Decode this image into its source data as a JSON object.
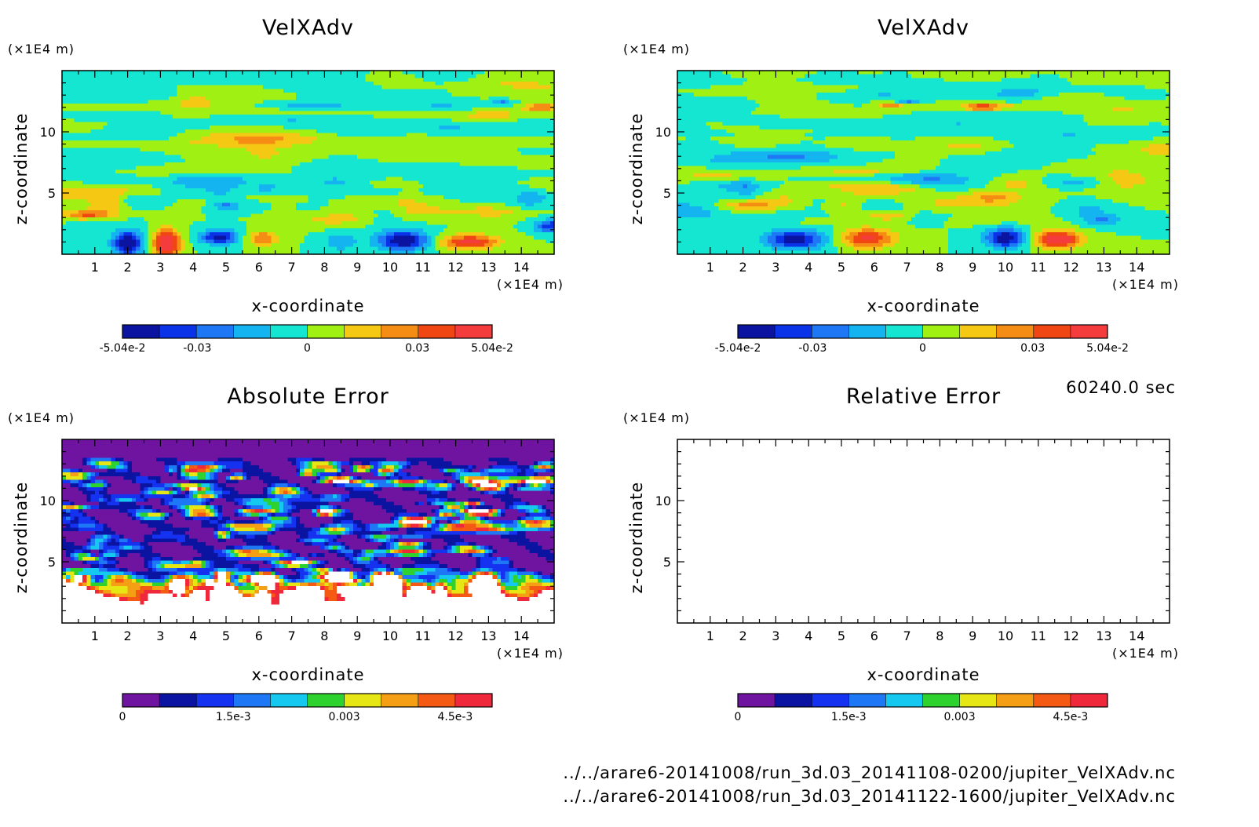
{
  "timestamp": "60240.0 sec",
  "files": [
    "../../arare6-20141008/run_3d.03_20141108-0200/jupiter_VelXAdv.nc",
    "../../arare6-20141008/run_3d.03_20141122-1600/jupiter_VelXAdv.nc"
  ],
  "colors": {
    "field": [
      "#0a14a0",
      "#0a32e6",
      "#1e78f5",
      "#14b4f0",
      "#14e6d2",
      "#a0f014",
      "#f5c814",
      "#f58c14",
      "#f04614",
      "#f53c3c"
    ],
    "error": [
      "#6e14a0",
      "#0a14a0",
      "#1432f0",
      "#1e78f5",
      "#14c8f0",
      "#2ed22e",
      "#e6e614",
      "#f5a014",
      "#f55a14",
      "#f0283c"
    ]
  },
  "chart_data": [
    {
      "type": "heatmap",
      "title": "VelXAdv",
      "xlabel": "x-coordinate",
      "ylabel": "z-coordinate",
      "x_unit": "(×1E4 m)",
      "y_unit": "(×1E4 m)",
      "xlim": [
        0,
        15
      ],
      "ylim": [
        0,
        15
      ],
      "xticks": [
        "1",
        "2",
        "3",
        "4",
        "5",
        "6",
        "7",
        "8",
        "9",
        "10",
        "11",
        "12",
        "13",
        "14"
      ],
      "yticks": [
        "5",
        "10"
      ],
      "colorbar": {
        "labels": [
          "-5.04e-2",
          "-0.03",
          "0",
          "0.03",
          "5.04e-2"
        ],
        "values": [
          -0.0504,
          -0.03,
          0,
          0.03,
          0.0504
        ],
        "range": [
          -0.0504,
          0.0504
        ]
      }
    },
    {
      "type": "heatmap",
      "title": "VelXAdv",
      "xlabel": "x-coordinate",
      "ylabel": "z-coordinate",
      "x_unit": "(×1E4 m)",
      "y_unit": "(×1E4 m)",
      "xlim": [
        0,
        15
      ],
      "ylim": [
        0,
        15
      ],
      "xticks": [
        "1",
        "2",
        "3",
        "4",
        "5",
        "6",
        "7",
        "8",
        "9",
        "10",
        "11",
        "12",
        "13",
        "14"
      ],
      "yticks": [
        "5",
        "10"
      ],
      "colorbar": {
        "labels": [
          "-5.04e-2",
          "-0.03",
          "0",
          "0.03",
          "5.04e-2"
        ],
        "values": [
          -0.0504,
          -0.03,
          0,
          0.03,
          0.0504
        ],
        "range": [
          -0.0504,
          0.0504
        ]
      }
    },
    {
      "type": "heatmap",
      "title": "Absolute Error",
      "xlabel": "x-coordinate",
      "ylabel": "z-coordinate",
      "x_unit": "(×1E4 m)",
      "y_unit": "(×1E4 m)",
      "xlim": [
        0,
        15
      ],
      "ylim": [
        0,
        15
      ],
      "xticks": [
        "1",
        "2",
        "3",
        "4",
        "5",
        "6",
        "7",
        "8",
        "9",
        "10",
        "11",
        "12",
        "13",
        "14"
      ],
      "yticks": [
        "5",
        "10"
      ],
      "colorbar": {
        "labels": [
          "0",
          "1.5e-3",
          "0.003",
          "4.5e-3"
        ],
        "values": [
          0,
          0.0015,
          0.003,
          0.0045
        ],
        "range": [
          0,
          0.005
        ]
      }
    },
    {
      "type": "heatmap",
      "title": "Relative Error",
      "xlabel": "x-coordinate",
      "ylabel": "z-coordinate",
      "x_unit": "(×1E4 m)",
      "y_unit": "(×1E4 m)",
      "xlim": [
        0,
        15
      ],
      "ylim": [
        0,
        15
      ],
      "xticks": [
        "1",
        "2",
        "3",
        "4",
        "5",
        "6",
        "7",
        "8",
        "9",
        "10",
        "11",
        "12",
        "13",
        "14"
      ],
      "yticks": [
        "5",
        "10"
      ],
      "empty": true,
      "colorbar": {
        "labels": [
          "0",
          "1.5e-3",
          "0.003",
          "4.5e-3"
        ],
        "values": [
          0,
          0.0015,
          0.003,
          0.0045
        ],
        "range": [
          0,
          0.005
        ]
      }
    }
  ]
}
